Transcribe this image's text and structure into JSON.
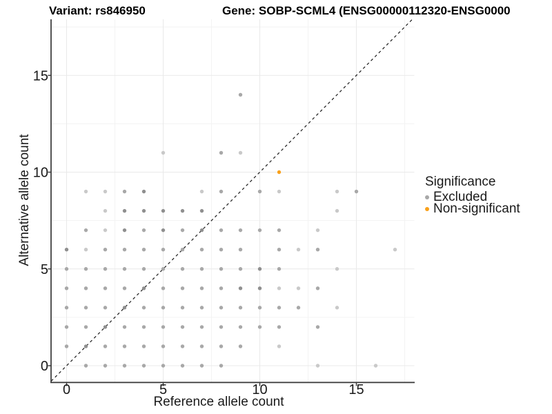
{
  "chart_data": {
    "type": "scatter",
    "titles": {
      "left": "Variant: rs846950",
      "right": "Gene: SOBP-SCML4 (ENSG00000112320-ENSG0000"
    },
    "xlabel": "Reference allele count",
    "ylabel": "Alternative allele count",
    "axes": {
      "x_ticks": [
        0,
        5,
        10,
        15
      ],
      "y_ticks": [
        0,
        5,
        10,
        15
      ],
      "x_minor": [
        2.5,
        7.5,
        12.5,
        17.5
      ],
      "y_minor": [
        2.5,
        7.5,
        12.5,
        17.5
      ],
      "xlim": [
        -0.8,
        18.0
      ],
      "ylim": [
        -0.85,
        17.9
      ],
      "grid": true
    },
    "identity_line": {
      "slope": 1,
      "intercept": 0,
      "style": "dashed",
      "color": "#1a1a1a"
    },
    "legend": {
      "title": "Significance",
      "position": "right",
      "items": [
        {
          "label": "Excluded",
          "color": "#a8a8a8"
        },
        {
          "label": "Non-significant",
          "color": "#F9A11B"
        }
      ]
    },
    "points": {
      "radius_px": 2.7,
      "shade_colors": {
        "l": "#c9c9c9",
        "m": "#a8a8a8",
        "d": "#8f8f8f"
      },
      "series": [
        {
          "name": "Excluded",
          "points": [
            [
              1,
              0,
              "m"
            ],
            [
              2,
              0,
              "m"
            ],
            [
              3,
              0,
              "m"
            ],
            [
              4,
              0,
              "m"
            ],
            [
              5,
              0,
              "m"
            ],
            [
              6,
              0,
              "m"
            ],
            [
              7,
              0,
              "m"
            ],
            [
              8,
              0,
              "m"
            ],
            [
              13,
              0,
              "l"
            ],
            [
              16,
              0,
              "l"
            ],
            [
              0,
              1,
              "m"
            ],
            [
              1,
              1,
              "d"
            ],
            [
              2,
              1,
              "m"
            ],
            [
              3,
              1,
              "m"
            ],
            [
              4,
              1,
              "m"
            ],
            [
              5,
              1,
              "m"
            ],
            [
              6,
              1,
              "m"
            ],
            [
              7,
              1,
              "m"
            ],
            [
              8,
              1,
              "m"
            ],
            [
              9,
              1,
              "m"
            ],
            [
              11,
              1,
              "l"
            ],
            [
              0,
              2,
              "m"
            ],
            [
              1,
              2,
              "m"
            ],
            [
              2,
              2,
              "d"
            ],
            [
              3,
              2,
              "m"
            ],
            [
              4,
              2,
              "m"
            ],
            [
              5,
              2,
              "m"
            ],
            [
              6,
              2,
              "m"
            ],
            [
              7,
              2,
              "m"
            ],
            [
              8,
              2,
              "m"
            ],
            [
              9,
              2,
              "m"
            ],
            [
              10,
              2,
              "m"
            ],
            [
              11,
              2,
              "m"
            ],
            [
              13,
              2,
              "m"
            ],
            [
              0,
              3,
              "m"
            ],
            [
              1,
              3,
              "m"
            ],
            [
              2,
              3,
              "m"
            ],
            [
              3,
              3,
              "d"
            ],
            [
              4,
              3,
              "m"
            ],
            [
              5,
              3,
              "m"
            ],
            [
              6,
              3,
              "m"
            ],
            [
              7,
              3,
              "m"
            ],
            [
              8,
              3,
              "m"
            ],
            [
              9,
              3,
              "m"
            ],
            [
              10,
              3,
              "m"
            ],
            [
              11,
              3,
              "m"
            ],
            [
              12,
              3,
              "m"
            ],
            [
              14,
              3,
              "l"
            ],
            [
              0,
              4,
              "m"
            ],
            [
              1,
              4,
              "m"
            ],
            [
              2,
              4,
              "m"
            ],
            [
              3,
              4,
              "m"
            ],
            [
              4,
              4,
              "d"
            ],
            [
              5,
              4,
              "m"
            ],
            [
              6,
              4,
              "m"
            ],
            [
              7,
              4,
              "m"
            ],
            [
              8,
              4,
              "m"
            ],
            [
              9,
              4,
              "d"
            ],
            [
              10,
              4,
              "d"
            ],
            [
              11,
              4,
              "l"
            ],
            [
              12,
              4,
              "l"
            ],
            [
              13,
              4,
              "m"
            ],
            [
              0,
              5,
              "m"
            ],
            [
              1,
              5,
              "m"
            ],
            [
              2,
              5,
              "m"
            ],
            [
              3,
              5,
              "m"
            ],
            [
              4,
              5,
              "m"
            ],
            [
              5,
              5,
              "m"
            ],
            [
              6,
              5,
              "m"
            ],
            [
              7,
              5,
              "m"
            ],
            [
              8,
              5,
              "m"
            ],
            [
              9,
              5,
              "m"
            ],
            [
              10,
              5,
              "d"
            ],
            [
              11,
              5,
              "m"
            ],
            [
              14,
              5,
              "l"
            ],
            [
              0,
              6,
              "d"
            ],
            [
              1,
              6,
              "l"
            ],
            [
              2,
              6,
              "m"
            ],
            [
              3,
              6,
              "m"
            ],
            [
              4,
              6,
              "m"
            ],
            [
              5,
              6,
              "m"
            ],
            [
              6,
              6,
              "m"
            ],
            [
              7,
              6,
              "m"
            ],
            [
              8,
              6,
              "m"
            ],
            [
              9,
              6,
              "m"
            ],
            [
              11,
              6,
              "m"
            ],
            [
              12,
              6,
              "l"
            ],
            [
              13,
              6,
              "m"
            ],
            [
              17,
              6,
              "l"
            ],
            [
              1,
              7,
              "m"
            ],
            [
              2,
              7,
              "l"
            ],
            [
              3,
              7,
              "d"
            ],
            [
              4,
              7,
              "m"
            ],
            [
              5,
              7,
              "d"
            ],
            [
              6,
              7,
              "m"
            ],
            [
              7,
              7,
              "d"
            ],
            [
              8,
              7,
              "m"
            ],
            [
              9,
              7,
              "m"
            ],
            [
              10,
              7,
              "m"
            ],
            [
              11,
              7,
              "m"
            ],
            [
              13,
              7,
              "l"
            ],
            [
              2,
              8,
              "l"
            ],
            [
              3,
              8,
              "d"
            ],
            [
              4,
              8,
              "d"
            ],
            [
              5,
              8,
              "d"
            ],
            [
              6,
              8,
              "d"
            ],
            [
              7,
              8,
              "d"
            ],
            [
              14,
              8,
              "l"
            ],
            [
              1,
              9,
              "l"
            ],
            [
              2,
              9,
              "l"
            ],
            [
              3,
              9,
              "m"
            ],
            [
              4,
              9,
              "d"
            ],
            [
              7,
              9,
              "l"
            ],
            [
              8,
              9,
              "m"
            ],
            [
              10,
              9,
              "m"
            ],
            [
              11,
              9,
              "l"
            ],
            [
              14,
              9,
              "l"
            ],
            [
              15,
              9,
              "m"
            ],
            [
              5,
              11,
              "l"
            ],
            [
              8,
              11,
              "m"
            ],
            [
              9,
              11,
              "l"
            ],
            [
              9,
              14,
              "m"
            ]
          ]
        },
        {
          "name": "Non-significant",
          "points": [
            [
              11,
              10
            ]
          ]
        }
      ]
    }
  }
}
